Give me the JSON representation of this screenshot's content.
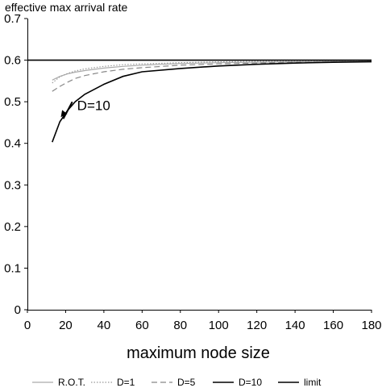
{
  "chart_data": {
    "type": "line",
    "title": "",
    "ylabel": "effective max arrival rate",
    "xlabel": "maximum node size",
    "xlim": [
      0,
      180
    ],
    "ylim": [
      0,
      0.7
    ],
    "xticks": [
      "0",
      "20",
      "40",
      "60",
      "80",
      "100",
      "120",
      "140",
      "160",
      "180"
    ],
    "yticks": [
      "0",
      "0.1",
      "0.2",
      "0.3",
      "0.4",
      "0.5",
      "0.6",
      "0.7"
    ],
    "grid": false,
    "legend_position": "bottom",
    "series": [
      {
        "name": "R.O.T.",
        "color": "#aaaaaa",
        "dash": "",
        "x": [
          13,
          17,
          21,
          25,
          30,
          40,
          50,
          60,
          80,
          100,
          120,
          140,
          160,
          180
        ],
        "y": [
          0.552,
          0.561,
          0.567,
          0.571,
          0.575,
          0.581,
          0.585,
          0.588,
          0.592,
          0.594,
          0.595,
          0.596,
          0.597,
          0.598
        ]
      },
      {
        "name": "D=1",
        "color": "#999999",
        "dash": "1.5,2",
        "x": [
          13,
          17,
          21,
          25,
          30,
          40,
          50,
          60,
          80,
          100,
          120,
          140,
          160,
          180
        ],
        "y": [
          0.545,
          0.56,
          0.568,
          0.574,
          0.579,
          0.585,
          0.589,
          0.591,
          0.594,
          0.596,
          0.597,
          0.597,
          0.598,
          0.598
        ]
      },
      {
        "name": "D=5",
        "color": "#888888",
        "dash": "7,4",
        "x": [
          13,
          17,
          21,
          25,
          30,
          40,
          50,
          60,
          80,
          100,
          120,
          140,
          160,
          180
        ],
        "y": [
          0.525,
          0.537,
          0.547,
          0.556,
          0.563,
          0.572,
          0.578,
          0.582,
          0.588,
          0.591,
          0.593,
          0.595,
          0.596,
          0.597
        ]
      },
      {
        "name": "D=10",
        "color": "#000000",
        "dash": "",
        "x": [
          13,
          17,
          21,
          25,
          30,
          40,
          50,
          60,
          80,
          100,
          120,
          140,
          160,
          180
        ],
        "y": [
          0.403,
          0.452,
          0.479,
          0.5,
          0.518,
          0.542,
          0.561,
          0.572,
          0.58,
          0.586,
          0.59,
          0.593,
          0.595,
          0.596
        ]
      },
      {
        "name": "limit",
        "color": "#000000",
        "dash": "",
        "x": [
          0,
          180
        ],
        "y": [
          0.6,
          0.6
        ]
      }
    ],
    "annotations": [
      {
        "text": "D=10",
        "x": 26,
        "y": 0.492,
        "arrow_to": [
          13,
          0.403
        ]
      }
    ]
  }
}
